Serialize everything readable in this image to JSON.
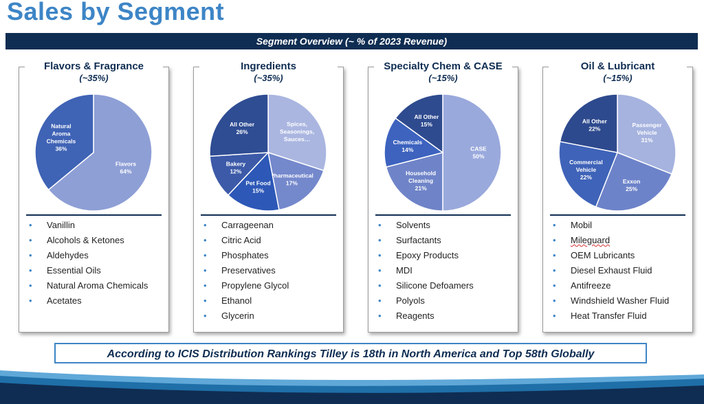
{
  "title": "Sales by Segment",
  "banner": "Segment Overview (~ % of 2023 Revenue)",
  "callout": "According to ICIS Distribution Rankings Tilley is 18th in North America and Top 58th Globally",
  "colors": {
    "navy": "#0f2d52",
    "accent": "#3d85c6"
  },
  "panels": [
    {
      "name": "Flavors & Fragrance",
      "pct": "(~35%)",
      "items": [
        "Vanillin",
        "Alcohols & Ketones",
        "Aldehydes",
        "Essential Oils",
        "Natural Aroma Chemicals",
        "Acetates"
      ]
    },
    {
      "name": "Ingredients",
      "pct": "(~35%)",
      "items": [
        "Carrageenan",
        "Citric Acid",
        "Phosphates",
        "Preservatives",
        "Propylene Glycol",
        "Ethanol",
        "Glycerin"
      ]
    },
    {
      "name": "Specialty Chem & CASE",
      "pct": "(~15%)",
      "items": [
        "Solvents",
        "Surfactants",
        "Epoxy Products",
        "MDI",
        "Silicone Defoamers",
        "Polyols",
        "Reagents"
      ]
    },
    {
      "name": "Oil & Lubricant",
      "pct": "(~15%)",
      "items": [
        "Mobil",
        "Mileguard",
        "OEM Lubricants",
        "Diesel Exhaust Fluid",
        "Antifreeze",
        "Windshield Washer Fluid",
        "Heat Transfer Fluid"
      ]
    }
  ],
  "chart_data": [
    {
      "type": "pie",
      "slices": [
        {
          "label": "Flavors",
          "value": 64,
          "value_label": "64%",
          "color": "#8e9fd6"
        },
        {
          "label": "Natural Aroma Chemicals",
          "value": 36,
          "value_label": "36%",
          "color": "#3f63b5"
        }
      ]
    },
    {
      "type": "pie",
      "slices": [
        {
          "label": "Spices, Seasonings, Sauces…",
          "value": 30,
          "value_label": "",
          "color": "#aab6e0"
        },
        {
          "label": "Pharmaceutical",
          "value": 17,
          "value_label": "17%",
          "color": "#7488cc"
        },
        {
          "label": "Pet Food",
          "value": 15,
          "value_label": "15%",
          "color": "#2d58b7"
        },
        {
          "label": "Bakery",
          "value": 12,
          "value_label": "12%",
          "color": "#3c5aa8"
        },
        {
          "label": "All Other",
          "value": 26,
          "value_label": "26%",
          "color": "#2f4d93"
        }
      ]
    },
    {
      "type": "pie",
      "slices": [
        {
          "label": "CASE",
          "value": 50,
          "value_label": "50%",
          "color": "#9aa9dc"
        },
        {
          "label": "Household Cleaning",
          "value": 21,
          "value_label": "21%",
          "color": "#6f84c8"
        },
        {
          "label": "Chemicals",
          "value": 14,
          "value_label": "14%",
          "color": "#3d63bf"
        },
        {
          "label": "All Other",
          "value": 15,
          "value_label": "15%",
          "color": "#2f4b8f"
        }
      ]
    },
    {
      "type": "pie",
      "slices": [
        {
          "label": "Passenger Vehicle",
          "value": 31,
          "value_label": "31%",
          "color": "#a6b3df"
        },
        {
          "label": "Exxon",
          "value": 25,
          "value_label": "25%",
          "color": "#6d83c9"
        },
        {
          "label": "Commercial Vehicle",
          "value": 22,
          "value_label": "22%",
          "color": "#3f63b8"
        },
        {
          "label": "All Other",
          "value": 22,
          "value_label": "22%",
          "color": "#2e4a8e"
        }
      ]
    }
  ]
}
